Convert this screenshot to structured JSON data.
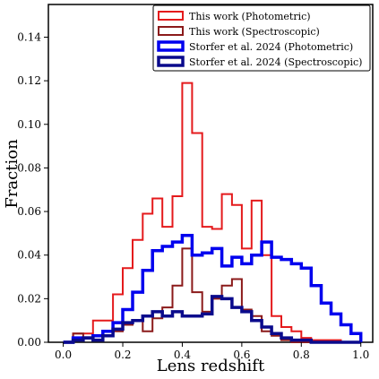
{
  "chart_data": {
    "type": "step-histogram",
    "xlabel": "Lens redshift",
    "ylabel": "Fraction",
    "xlim": [
      -0.05,
      1.04
    ],
    "ylim": [
      0,
      0.155
    ],
    "xticks": [
      0.0,
      0.2,
      0.4,
      0.6,
      0.8,
      1.0
    ],
    "yticks": [
      0.0,
      0.02,
      0.04,
      0.06,
      0.08,
      0.1,
      0.12,
      0.14
    ],
    "legend_position": "top-right",
    "bin_edges": [
      0.0,
      0.033,
      0.067,
      0.1,
      0.133,
      0.167,
      0.2,
      0.233,
      0.267,
      0.3,
      0.333,
      0.367,
      0.4,
      0.433,
      0.467,
      0.5,
      0.533,
      0.567,
      0.6,
      0.633,
      0.667,
      0.7,
      0.733,
      0.767,
      0.8,
      0.833,
      0.867,
      0.9,
      0.933,
      0.967,
      1.0
    ],
    "series": [
      {
        "name": "This work (Photometric)",
        "color": "#e41a1c",
        "width": 2,
        "values": [
          0,
          0.004,
          0.004,
          0.01,
          0.01,
          0.022,
          0.034,
          0.047,
          0.059,
          0.066,
          0.053,
          0.067,
          0.119,
          0.096,
          0.053,
          0.052,
          0.068,
          0.063,
          0.043,
          0.065,
          0.04,
          0.012,
          0.007,
          0.005,
          0.002,
          0.001,
          0.001,
          0.001,
          0.0,
          0.0
        ]
      },
      {
        "name": "This work (Spectroscopic)",
        "color": "#8b1a1a",
        "width": 2,
        "values": [
          0,
          0.004,
          0.002,
          0.003,
          0.003,
          0.005,
          0.008,
          0.01,
          0.005,
          0.011,
          0.016,
          0.026,
          0.043,
          0.023,
          0.014,
          0.02,
          0.026,
          0.029,
          0.015,
          0.012,
          0.005,
          0.003,
          0.001,
          0.0,
          0.0,
          0.0,
          0.0,
          0.0,
          0.0,
          0.0
        ]
      },
      {
        "name": "Storfer et al. 2024 (Photometric)",
        "color": "#0000ee",
        "width": 3.5,
        "values": [
          0,
          0.002,
          0.002,
          0.003,
          0.005,
          0.009,
          0.015,
          0.023,
          0.033,
          0.042,
          0.044,
          0.046,
          0.049,
          0.04,
          0.041,
          0.043,
          0.035,
          0.039,
          0.036,
          0.04,
          0.046,
          0.039,
          0.038,
          0.036,
          0.034,
          0.026,
          0.018,
          0.013,
          0.008,
          0.004
        ]
      },
      {
        "name": "Storfer et al. 2024 (Spectroscopic)",
        "color": "#0a0a8c",
        "width": 3.5,
        "values": [
          0,
          0.001,
          0.002,
          0.001,
          0.003,
          0.006,
          0.009,
          0.01,
          0.012,
          0.014,
          0.012,
          0.014,
          0.012,
          0.012,
          0.013,
          0.021,
          0.02,
          0.016,
          0.014,
          0.01,
          0.007,
          0.004,
          0.002,
          0.001,
          0.001,
          0.0,
          0.0,
          0.0,
          0.0,
          0.0
        ]
      }
    ]
  }
}
